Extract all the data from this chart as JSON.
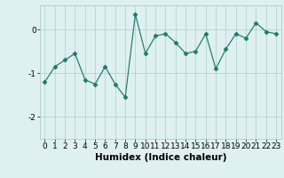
{
  "x": [
    0,
    1,
    2,
    3,
    4,
    5,
    6,
    7,
    8,
    9,
    10,
    11,
    12,
    13,
    14,
    15,
    16,
    17,
    18,
    19,
    20,
    21,
    22,
    23
  ],
  "y": [
    -1.2,
    -0.85,
    -0.7,
    -0.55,
    -1.15,
    -1.25,
    -0.85,
    -1.25,
    -1.55,
    0.35,
    -0.55,
    -0.15,
    -0.1,
    -0.3,
    -0.55,
    -0.5,
    -0.1,
    -0.9,
    -0.45,
    -0.1,
    -0.2,
    0.15,
    -0.05,
    -0.1
  ],
  "line_color": "#1a7a6e",
  "marker": "D",
  "marker_size": 2.5,
  "bg_color": "#dff0f0",
  "grid_color": "#aacfcf",
  "xlabel": "Humidex (Indice chaleur)",
  "ylabel": "",
  "title": "",
  "xlim": [
    -0.5,
    23.5
  ],
  "ylim": [
    -2.5,
    0.55
  ],
  "yticks": [
    -2,
    -1,
    0
  ],
  "xticks": [
    0,
    1,
    2,
    3,
    4,
    5,
    6,
    7,
    8,
    9,
    10,
    11,
    12,
    13,
    14,
    15,
    16,
    17,
    18,
    19,
    20,
    21,
    22,
    23
  ],
  "xlabel_fontsize": 7.5,
  "tick_fontsize": 6.5,
  "linewidth": 0.85
}
